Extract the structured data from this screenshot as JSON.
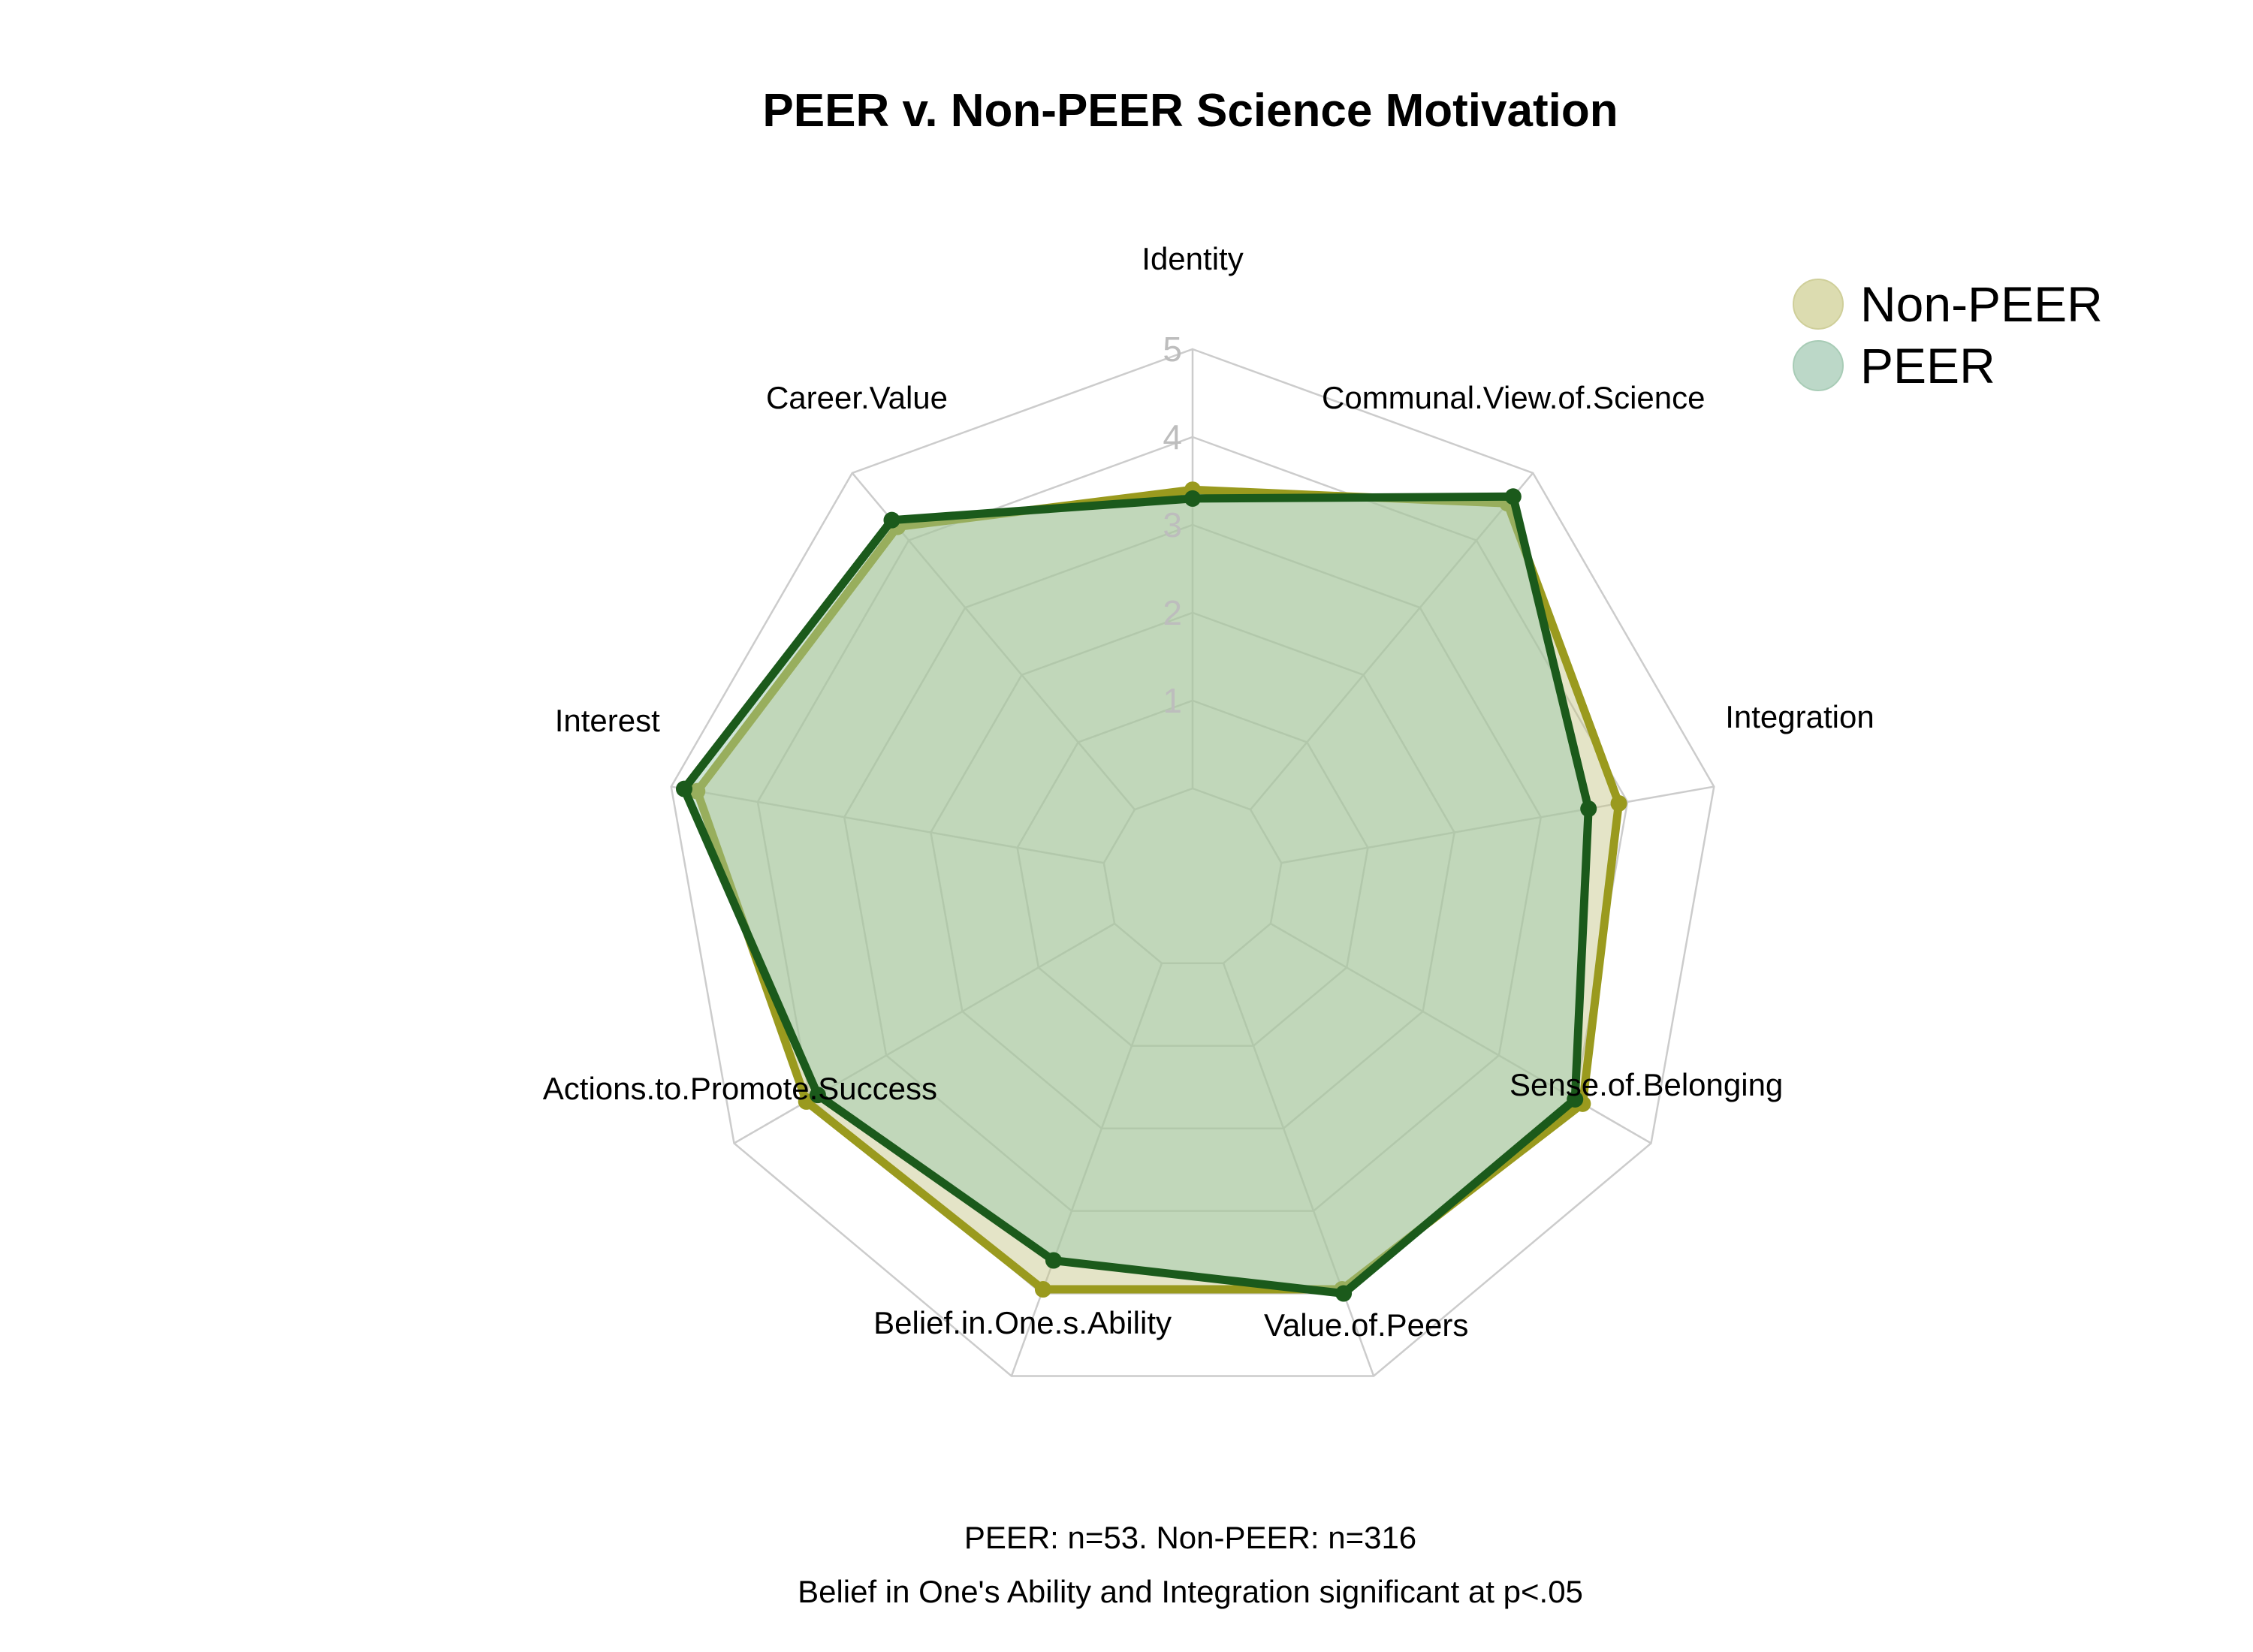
{
  "chart_data": {
    "type": "radar",
    "title": "PEER v. Non-PEER Science Motivation",
    "axes": [
      "Identity",
      "Communal.View.of.Science",
      "Integration",
      "Sense.of.Belonging",
      "Value.of.Peers",
      "Belief.in.One.s.Ability",
      "Actions.to.Promote.Success",
      "Interest",
      "Career.Value"
    ],
    "rlim": [
      0,
      5
    ],
    "ticks": [
      "1",
      "2",
      "3",
      "4",
      "5"
    ],
    "series": [
      {
        "name": "Non-PEER",
        "color": "#9a9a1e",
        "fill": "rgba(196,196,130,0.45)",
        "values": [
          3.4,
          4.55,
          3.9,
          4.1,
          3.95,
          3.95,
          4.05,
          4.7,
          4.2
        ]
      },
      {
        "name": "PEER",
        "color": "#1b5a1b",
        "fill": "rgba(150,200,170,0.45)",
        "values": [
          3.3,
          4.65,
          3.55,
          4.0,
          4.0,
          3.6,
          3.9,
          4.85,
          4.3
        ]
      }
    ],
    "legend_position": "top-right",
    "grid": true,
    "caption_lines": [
      "PEER: n=53. Non-PEER: n=316",
      "Belief in One's Ability and Integration significant at p<.05"
    ]
  }
}
